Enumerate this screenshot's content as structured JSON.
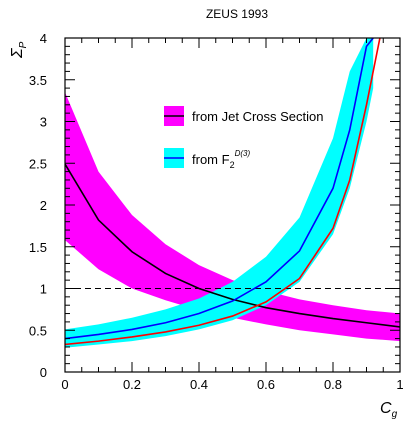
{
  "chart_data": {
    "type": "line",
    "title": "ZEUS 1993",
    "xlabel": "C",
    "xlabel_sub": "g",
    "ylabel": "Σ",
    "ylabel_sub": "P",
    "xlim": [
      0,
      1
    ],
    "ylim": [
      0,
      4
    ],
    "x_ticks": [
      "0",
      "0.2",
      "0.4",
      "0.6",
      "0.8",
      "1"
    ],
    "y_ticks": [
      "0",
      "0.5",
      "1",
      "1.5",
      "2",
      "2.5",
      "3",
      "3.5",
      "4"
    ],
    "reference_line": {
      "y": 1,
      "style": "dashed"
    },
    "legend": [
      {
        "label": "from Jet Cross Section",
        "band_color": "#ff00ff",
        "line_color": "#000000"
      },
      {
        "label": "from F",
        "label_sub": "2",
        "label_sup": "D(3)",
        "band_color": "#00ffff",
        "line_color": "#0000ff"
      }
    ],
    "series": [
      {
        "name": "from Jet Cross Section",
        "color": "#000000",
        "band_color": "#ff00ff",
        "x": [
          0,
          0.1,
          0.2,
          0.3,
          0.4,
          0.5,
          0.6,
          0.7,
          0.8,
          0.9,
          1.0
        ],
        "y": [
          2.49,
          1.82,
          1.44,
          1.18,
          1.0,
          0.87,
          0.77,
          0.7,
          0.64,
          0.59,
          0.54
        ],
        "lower": [
          1.58,
          1.23,
          1.0,
          0.86,
          0.74,
          0.65,
          0.57,
          0.5,
          0.45,
          0.4,
          0.37
        ],
        "upper": [
          3.35,
          2.4,
          1.88,
          1.53,
          1.28,
          1.1,
          0.97,
          0.87,
          0.8,
          0.74,
          0.7
        ]
      },
      {
        "name": "from F2 D(3)",
        "color": "#0000ff",
        "band_color": "#00ffff",
        "x": [
          0,
          0.1,
          0.2,
          0.3,
          0.4,
          0.5,
          0.6,
          0.7,
          0.8,
          0.85,
          0.9,
          0.92
        ],
        "y": [
          0.4,
          0.45,
          0.51,
          0.59,
          0.7,
          0.85,
          1.08,
          1.45,
          2.2,
          2.9,
          3.9,
          4.0
        ],
        "lower": [
          0.29,
          0.33,
          0.37,
          0.43,
          0.51,
          0.62,
          0.8,
          1.08,
          1.65,
          2.2,
          3.0,
          3.4
        ],
        "upper": [
          0.51,
          0.57,
          0.65,
          0.75,
          0.88,
          1.08,
          1.38,
          1.85,
          2.8,
          3.6,
          4.0,
          4.0
        ]
      },
      {
        "name": "",
        "color": "#ff0000",
        "x": [
          0,
          0.1,
          0.2,
          0.3,
          0.4,
          0.5,
          0.6,
          0.7,
          0.8,
          0.85,
          0.9,
          0.94
        ],
        "y": [
          0.33,
          0.37,
          0.42,
          0.48,
          0.56,
          0.67,
          0.84,
          1.12,
          1.72,
          2.3,
          3.2,
          4.0
        ]
      }
    ]
  }
}
